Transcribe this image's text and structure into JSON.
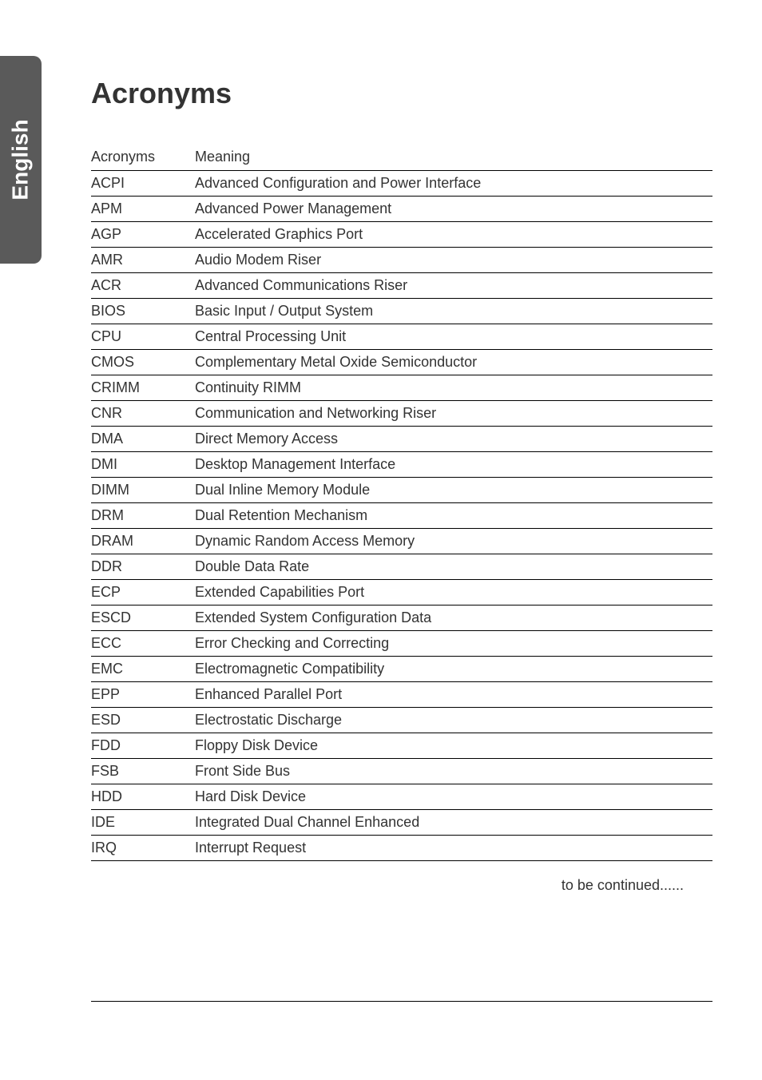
{
  "sideTab": {
    "label": "English"
  },
  "title": "Acronyms",
  "table": {
    "headers": {
      "col1": "Acronyms",
      "col2": "Meaning"
    },
    "rows": [
      {
        "acronym": "ACPI",
        "meaning": "Advanced Configuration and Power Interface"
      },
      {
        "acronym": "APM",
        "meaning": "Advanced Power Management"
      },
      {
        "acronym": "AGP",
        "meaning": "Accelerated Graphics Port"
      },
      {
        "acronym": "AMR",
        "meaning": "Audio Modem Riser"
      },
      {
        "acronym": "ACR",
        "meaning": "Advanced Communications Riser"
      },
      {
        "acronym": "BIOS",
        "meaning": "Basic Input / Output System"
      },
      {
        "acronym": "CPU",
        "meaning": "Central Processing Unit"
      },
      {
        "acronym": "CMOS",
        "meaning": "Complementary Metal Oxide Semiconductor"
      },
      {
        "acronym": "CRIMM",
        "meaning": "Continuity RIMM"
      },
      {
        "acronym": "CNR",
        "meaning": "Communication and Networking Riser"
      },
      {
        "acronym": "DMA",
        "meaning": "Direct Memory Access"
      },
      {
        "acronym": "DMI",
        "meaning": "Desktop Management Interface"
      },
      {
        "acronym": "DIMM",
        "meaning": "Dual Inline Memory Module"
      },
      {
        "acronym": "DRM",
        "meaning": "Dual Retention Mechanism"
      },
      {
        "acronym": "DRAM",
        "meaning": "Dynamic Random Access Memory"
      },
      {
        "acronym": "DDR",
        "meaning": "Double Data Rate"
      },
      {
        "acronym": "ECP",
        "meaning": "Extended Capabilities Port"
      },
      {
        "acronym": "ESCD",
        "meaning": "Extended System Configuration Data"
      },
      {
        "acronym": "ECC",
        "meaning": "Error Checking and Correcting"
      },
      {
        "acronym": "EMC",
        "meaning": "Electromagnetic Compatibility"
      },
      {
        "acronym": "EPP",
        "meaning": "Enhanced Parallel Port"
      },
      {
        "acronym": "ESD",
        "meaning": "Electrostatic Discharge"
      },
      {
        "acronym": "FDD",
        "meaning": "Floppy Disk Device"
      },
      {
        "acronym": "FSB",
        "meaning": "Front Side Bus"
      },
      {
        "acronym": "HDD",
        "meaning": "Hard Disk Device"
      },
      {
        "acronym": "IDE",
        "meaning": "Integrated Dual Channel Enhanced"
      },
      {
        "acronym": "IRQ",
        "meaning": "Interrupt Request"
      }
    ]
  },
  "continued": "to be continued......"
}
